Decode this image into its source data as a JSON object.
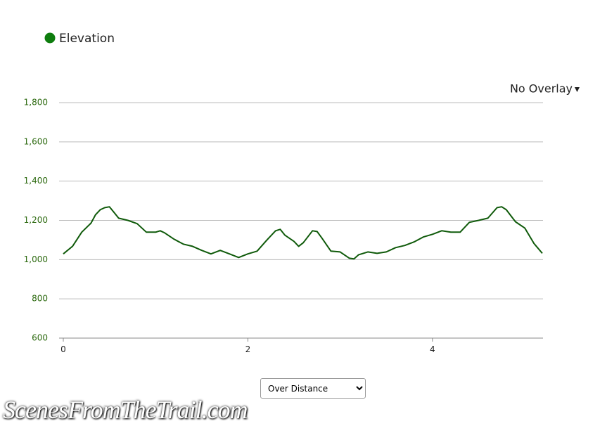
{
  "chart_data": {
    "type": "line",
    "legend": "Elevation",
    "overlay_menu": "No Overlay",
    "x_mode_menu": "Over Distance",
    "watermark": "ScenesFromTheTrail.com",
    "x": [
      0,
      0.1,
      0.2,
      0.3,
      0.35,
      0.4,
      0.45,
      0.5,
      0.55,
      0.6,
      0.7,
      0.8,
      0.9,
      1.0,
      1.05,
      1.1,
      1.2,
      1.3,
      1.4,
      1.5,
      1.6,
      1.7,
      1.8,
      1.9,
      2.0,
      2.1,
      2.2,
      2.3,
      2.35,
      2.4,
      2.5,
      2.55,
      2.6,
      2.7,
      2.75,
      2.8,
      2.9,
      3.0,
      3.1,
      3.15,
      3.2,
      3.3,
      3.4,
      3.5,
      3.6,
      3.7,
      3.8,
      3.9,
      4.0,
      4.1,
      4.2,
      4.3,
      4.4,
      4.5,
      4.6,
      4.7,
      4.75,
      4.8,
      4.9,
      5.0,
      5.1,
      5.19
    ],
    "series": [
      {
        "name": "Elevation",
        "color": "#0f5a0a",
        "values": [
          1029,
          1068,
          1140,
          1186,
          1229,
          1254,
          1265,
          1269,
          1240,
          1211,
          1200,
          1183,
          1140,
          1140,
          1147,
          1136,
          1104,
          1079,
          1068,
          1047,
          1029,
          1047,
          1029,
          1011,
          1029,
          1043,
          1097,
          1147,
          1154,
          1125,
          1093,
          1068,
          1086,
          1147,
          1143,
          1111,
          1043,
          1039,
          1007,
          1004,
          1025,
          1039,
          1032,
          1039,
          1061,
          1072,
          1090,
          1115,
          1129,
          1147,
          1140,
          1140,
          1190,
          1200,
          1211,
          1265,
          1269,
          1254,
          1193,
          1161,
          1082,
          1032
        ]
      }
    ],
    "legend_color": "#0e7d0e",
    "xlim": [
      0,
      5.19
    ],
    "xticks": [
      0,
      2,
      4
    ],
    "ylim": [
      600,
      1800
    ],
    "yticks": [
      {
        "value": 600,
        "label": "600"
      },
      {
        "value": 800,
        "label": "800"
      },
      {
        "value": 1000,
        "label": "1,000"
      },
      {
        "value": 1200,
        "label": "1,200"
      },
      {
        "value": 1400,
        "label": "1,400"
      },
      {
        "value": 1600,
        "label": "1,600"
      },
      {
        "value": 1800,
        "label": "1,800"
      }
    ],
    "grid": true
  }
}
